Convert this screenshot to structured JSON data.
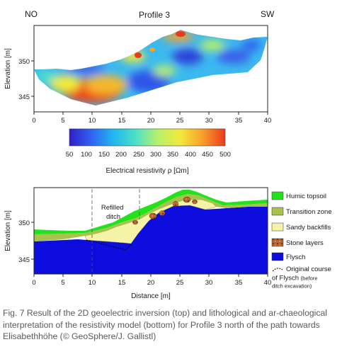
{
  "figure": {
    "top_panel": {
      "title": "Profile 3",
      "left_direction": "NO",
      "right_direction": "SW",
      "ylabel": "Elevation [m]",
      "yticks": [
        "350",
        "345"
      ],
      "xticks": [
        "0",
        "5",
        "10",
        "15",
        "20",
        "25",
        "30",
        "35",
        "40"
      ]
    },
    "colorbar": {
      "ticks": [
        "50",
        "100",
        "150",
        "200",
        "250",
        "300",
        "350",
        "400",
        "450",
        "500"
      ],
      "label": "Electrical resistivity ρ [Ωm]",
      "colors": [
        "#2e1fc8",
        "#2f63f0",
        "#1fb6ef",
        "#4fe1c6",
        "#b8f06a",
        "#f2ea3a",
        "#f8a22a",
        "#ec3b1c"
      ]
    },
    "bottom_panel": {
      "annotation": "Refilled\nditch",
      "ylabel": "Elevation [m]",
      "yticks": [
        "350",
        "345"
      ],
      "xticks": [
        "0",
        "5",
        "10",
        "15",
        "20",
        "25",
        "30",
        "35",
        "40"
      ],
      "xlabel": "Distance [m]",
      "legend": [
        {
          "label": "Humic topsoil",
          "color": "#22e21c"
        },
        {
          "label": "Transition zone",
          "color": "#a8c24c"
        },
        {
          "label": "Sandy backfills",
          "color": "#f5f3a6"
        },
        {
          "label": "Stone layers",
          "color": "#b8672e"
        },
        {
          "label": "Flysch",
          "color": "#0d0de0"
        },
        {
          "label": "Original course\nof Flysch (before\nditch excavation)",
          "color": "#000000"
        }
      ]
    }
  },
  "caption": "Fig. 7 Result of the 2D geoelectric inversion (top) and lithological and ar-chaeological interpretation of the resistivity model (bottom) for Profile 3 north of the path towards Elisabethhöhe (© GeoSphere/J. Gallistl)"
}
